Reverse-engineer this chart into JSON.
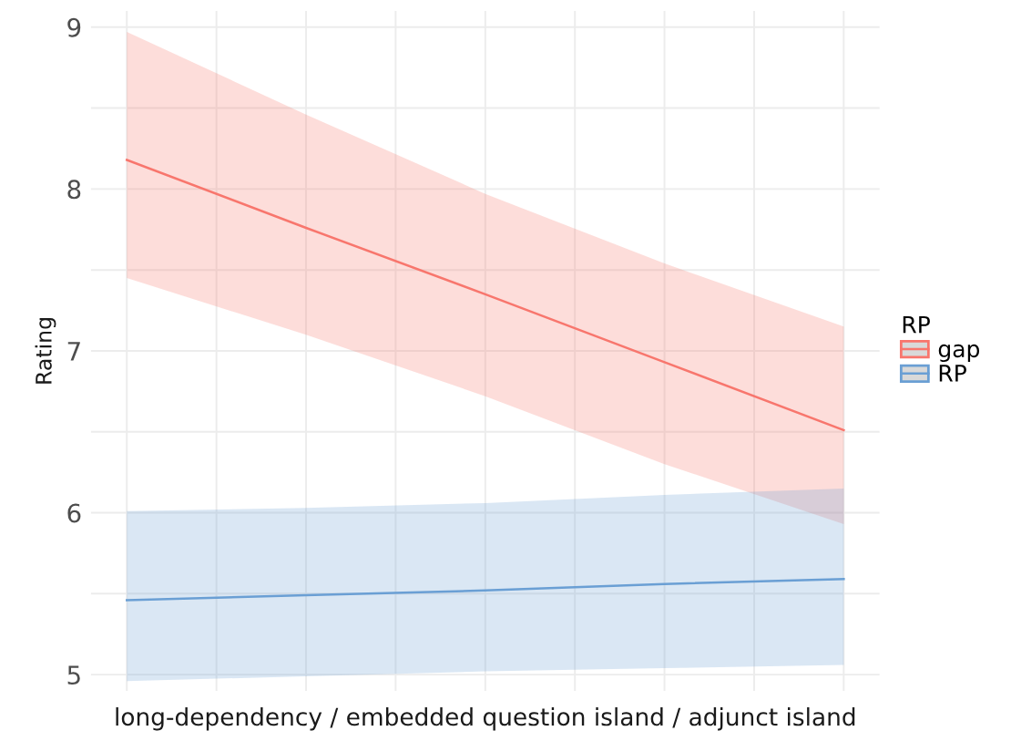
{
  "chart_data": {
    "type": "line",
    "xlabel": "long-dependency / embedded question island / adjunct island",
    "ylabel": "Rating",
    "legend_title": "RP",
    "legend": "right",
    "grid": true,
    "tick_labels": "y",
    "marker": "none",
    "line_style": "solid",
    "categories": [
      null,
      null,
      null,
      null,
      null
    ],
    "ylim": [
      4.9,
      9.1
    ],
    "yticks": [
      5,
      6,
      7,
      8,
      9
    ],
    "series": [
      {
        "name": "gap",
        "color": "#f8766d",
        "values": [
          8.18,
          7.76,
          7.35,
          6.93,
          6.51
        ],
        "lower": [
          7.45,
          7.1,
          6.72,
          6.3,
          5.93
        ],
        "upper": [
          8.97,
          8.46,
          7.97,
          7.54,
          7.15
        ]
      },
      {
        "name": "RP",
        "color": "#6a9fd4",
        "values": [
          5.46,
          5.49,
          5.52,
          5.56,
          5.59
        ],
        "lower": [
          4.96,
          4.99,
          5.02,
          5.04,
          5.06
        ],
        "upper": [
          6.01,
          6.03,
          6.06,
          6.11,
          6.15
        ]
      }
    ]
  }
}
